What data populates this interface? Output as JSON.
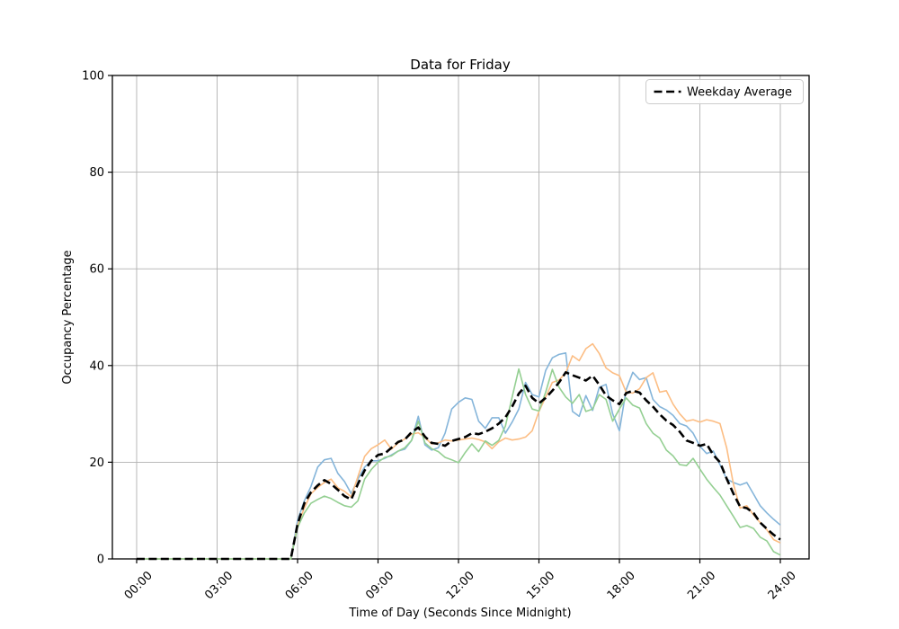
{
  "chart_data": {
    "type": "line",
    "title": "Data for Friday",
    "xlabel": "Time of Day (Seconds Since Midnight)",
    "ylabel": "Occupancy Percentage",
    "legend_label": "Weekday Average",
    "legend_position": "upper right",
    "grid": true,
    "grid_color": "#b0b0b0",
    "figure_bg": "#ffffff",
    "x_axis": {
      "tick_labels": [
        "00:00",
        "03:00",
        "06:00",
        "09:00",
        "12:00",
        "15:00",
        "18:00",
        "21:00",
        "24:00"
      ],
      "tick_hours": [
        0,
        3,
        6,
        9,
        12,
        15,
        18,
        21,
        24
      ],
      "range_hours": [
        0,
        24
      ]
    },
    "y_axis": {
      "ticks": [
        0,
        20,
        40,
        60,
        80,
        100
      ],
      "range": [
        0,
        100
      ]
    },
    "x_hours": [
      0,
      0.25,
      0.5,
      0.75,
      1,
      1.25,
      1.5,
      1.75,
      2,
      2.25,
      2.5,
      2.75,
      3,
      3.25,
      3.5,
      3.75,
      4,
      4.25,
      4.5,
      4.75,
      5,
      5.25,
      5.5,
      5.75,
      6,
      6.25,
      6.5,
      6.75,
      7,
      7.25,
      7.5,
      7.75,
      8,
      8.25,
      8.5,
      8.75,
      9,
      9.25,
      9.5,
      9.75,
      10,
      10.25,
      10.5,
      10.75,
      11,
      11.25,
      11.5,
      11.75,
      12,
      12.25,
      12.5,
      12.75,
      13,
      13.25,
      13.5,
      13.75,
      14,
      14.25,
      14.5,
      14.75,
      15,
      15.25,
      15.5,
      15.75,
      16,
      16.25,
      16.5,
      16.75,
      17,
      17.25,
      17.5,
      17.75,
      18,
      18.25,
      18.5,
      18.75,
      19,
      19.25,
      19.5,
      19.75,
      20,
      20.25,
      20.5,
      20.75,
      21,
      21.25,
      21.5,
      21.75,
      22,
      22.25,
      22.5,
      22.75,
      23,
      23.25,
      23.5,
      23.75,
      24
    ],
    "series": [
      {
        "name": "friday-week-blue",
        "label": "",
        "color": "#85b5da",
        "dash": "solid",
        "width": 1.6,
        "values": [
          0,
          0,
          0,
          0,
          0,
          0,
          0,
          0,
          0,
          0,
          0,
          0,
          0,
          0,
          0,
          0,
          0,
          0,
          0,
          0,
          0,
          0,
          0,
          0,
          8,
          12,
          15,
          19,
          20.5,
          20.8,
          17.7,
          16,
          13.5,
          16.5,
          19,
          20.3,
          20.3,
          20.8,
          21.5,
          22.3,
          22.7,
          24.5,
          29.5,
          23.6,
          22.5,
          23,
          26,
          31,
          32.4,
          33.3,
          33,
          28.5,
          27,
          29.2,
          29.2,
          26,
          28.3,
          31,
          36.5,
          34,
          33.5,
          39,
          41.6,
          42.3,
          42.6,
          30.5,
          29.5,
          33.8,
          30.7,
          35.5,
          36.1,
          30,
          26.5,
          35,
          38.6,
          37.1,
          37.5,
          33,
          31.5,
          30.8,
          29.7,
          28,
          27.5,
          26,
          23.3,
          21.8,
          22.3,
          19.5,
          16.5,
          15.8,
          15.3,
          15.8,
          13.4,
          11,
          9.5,
          8.2,
          7
        ]
      },
      {
        "name": "friday-week-orange",
        "label": "",
        "color": "#fcbd83",
        "dash": "solid",
        "width": 1.6,
        "values": [
          0,
          0,
          0,
          0,
          0,
          0,
          0,
          0,
          0,
          0,
          0,
          0,
          0,
          0,
          0,
          0,
          0,
          0,
          0,
          0,
          0,
          0,
          0,
          0,
          7,
          10.5,
          13.5,
          14.8,
          15.8,
          16.5,
          14.7,
          14,
          12.8,
          17,
          21.2,
          22.8,
          23.6,
          24.6,
          22.7,
          24,
          24.8,
          25.8,
          26.1,
          25.1,
          23.8,
          24,
          24.6,
          24.4,
          24.6,
          24.8,
          25,
          24.7,
          24.2,
          22.8,
          24.2,
          25,
          24.6,
          24.8,
          25.2,
          26.5,
          30.5,
          33.5,
          36.5,
          37,
          38.5,
          42,
          41,
          43.5,
          44.5,
          42.5,
          39.5,
          38.5,
          37.9,
          34.5,
          34.3,
          35.2,
          37.5,
          38.5,
          34.5,
          34.8,
          32,
          30,
          28.5,
          28.8,
          28.3,
          28.8,
          28.5,
          28,
          23,
          15.5,
          10.5,
          11,
          9.1,
          7.5,
          6,
          4,
          3.3
        ]
      },
      {
        "name": "friday-week-green",
        "label": "",
        "color": "#94cf92",
        "dash": "solid",
        "width": 1.6,
        "values": [
          0,
          0,
          0,
          0,
          0,
          0,
          0,
          0,
          0,
          0,
          0,
          0,
          0,
          0,
          0,
          0,
          0,
          0,
          0,
          0,
          0,
          0,
          0,
          0,
          6.5,
          9.5,
          11.5,
          12.3,
          13,
          12.5,
          11.7,
          11,
          10.7,
          12,
          16.5,
          18.5,
          20,
          21,
          21.3,
          22.3,
          23,
          24.5,
          28.5,
          24,
          22.8,
          22.2,
          21,
          20.5,
          19.9,
          22,
          23.8,
          22.2,
          24.4,
          23.5,
          24.5,
          27.5,
          33.5,
          39.3,
          34,
          31,
          30.6,
          34.5,
          39.2,
          35.5,
          33.5,
          32.2,
          34,
          30.5,
          31,
          34,
          33,
          28.5,
          31,
          33.3,
          31.8,
          31.2,
          28,
          26,
          25,
          22.5,
          21.3,
          19.5,
          19.3,
          20.8,
          18.6,
          16.5,
          14.8,
          13.2,
          11,
          8.8,
          6.5,
          6.9,
          6.3,
          4.5,
          3.7,
          1.5,
          0.8
        ]
      },
      {
        "name": "weekday-average",
        "label": "Weekday Average",
        "color": "#000000",
        "dash": "dashed",
        "width": 2.6,
        "values": [
          0,
          0,
          0,
          0,
          0,
          0,
          0,
          0,
          0,
          0,
          0,
          0,
          0,
          0,
          0,
          0,
          0,
          0,
          0,
          0,
          0,
          0,
          0,
          0,
          7.2,
          11.5,
          13.8,
          15.2,
          16.3,
          15.5,
          14.3,
          13,
          12.3,
          15.5,
          18.3,
          20.3,
          21.5,
          21.8,
          23,
          24.2,
          24.7,
          26.2,
          27.2,
          25.3,
          24,
          23.8,
          23.4,
          24.4,
          24.8,
          25.2,
          26,
          25.8,
          26.3,
          27,
          28,
          29.3,
          31.5,
          34.2,
          35.8,
          33.3,
          32.2,
          33.3,
          34.8,
          36.5,
          38.6,
          38,
          37.5,
          36.9,
          37.9,
          36,
          33.8,
          32.8,
          32,
          34.3,
          34.8,
          34.4,
          32.8,
          31.5,
          29.9,
          28.6,
          27.7,
          26.3,
          24.5,
          24,
          23.4,
          23.8,
          21.5,
          20,
          16.6,
          13.5,
          10.8,
          10.5,
          9.5,
          7.5,
          6.2,
          5,
          4
        ]
      }
    ]
  }
}
